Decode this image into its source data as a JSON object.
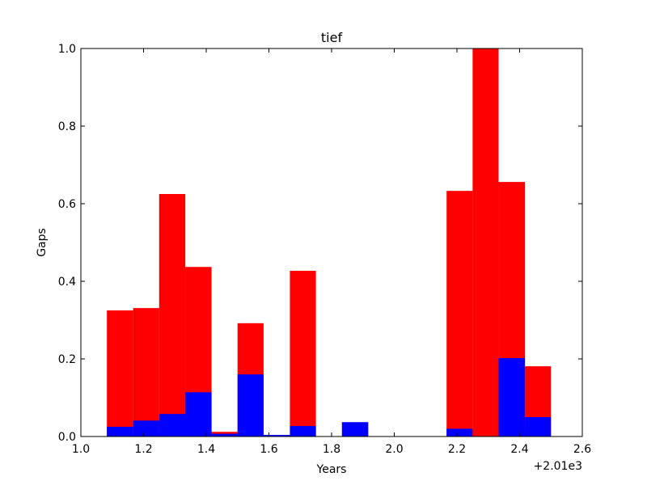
{
  "chart_data": {
    "type": "bar",
    "title": "tief",
    "xlabel": "Years",
    "ylabel": "Gaps",
    "x_offset_label": "+2.01e3",
    "xlim": [
      1.0,
      2.6
    ],
    "ylim": [
      0.0,
      1.0
    ],
    "x_ticks": [
      "1.0",
      "1.2",
      "1.4",
      "1.6",
      "1.8",
      "2.0",
      "2.2",
      "2.4",
      "2.6"
    ],
    "y_ticks": [
      "0.0",
      "0.2",
      "0.4",
      "0.6",
      "0.8",
      "1.0"
    ],
    "grid": false,
    "colors": {
      "series_1": "#ff0000",
      "series_2": "#0000ff"
    },
    "series": [
      {
        "bars": [
          {
            "x0": 1.083,
            "x1": 1.167,
            "y": 0.325
          },
          {
            "x0": 1.167,
            "x1": 1.25,
            "y": 0.331
          },
          {
            "x0": 1.25,
            "x1": 1.333,
            "y": 0.625
          },
          {
            "x0": 1.333,
            "x1": 1.417,
            "y": 0.437
          },
          {
            "x0": 1.417,
            "x1": 1.5,
            "y": 0.012
          },
          {
            "x0": 1.5,
            "x1": 1.583,
            "y": 0.292
          },
          {
            "x0": 1.667,
            "x1": 1.75,
            "y": 0.427
          },
          {
            "x0": 2.167,
            "x1": 2.25,
            "y": 0.633
          },
          {
            "x0": 2.25,
            "x1": 2.333,
            "y": 1.0
          },
          {
            "x0": 2.333,
            "x1": 2.417,
            "y": 0.656
          },
          {
            "x0": 2.417,
            "x1": 2.5,
            "y": 0.181
          }
        ]
      },
      {
        "bars": [
          {
            "x0": 1.083,
            "x1": 1.167,
            "y": 0.025
          },
          {
            "x0": 1.167,
            "x1": 1.25,
            "y": 0.041
          },
          {
            "x0": 1.25,
            "x1": 1.333,
            "y": 0.058
          },
          {
            "x0": 1.333,
            "x1": 1.417,
            "y": 0.114
          },
          {
            "x0": 1.417,
            "x1": 1.5,
            "y": 0.007
          },
          {
            "x0": 1.5,
            "x1": 1.583,
            "y": 0.16
          },
          {
            "x0": 1.583,
            "x1": 1.667,
            "y": 0.004
          },
          {
            "x0": 1.667,
            "x1": 1.75,
            "y": 0.027
          },
          {
            "x0": 1.833,
            "x1": 1.917,
            "y": 0.037
          },
          {
            "x0": 2.167,
            "x1": 2.25,
            "y": 0.02
          },
          {
            "x0": 2.333,
            "x1": 2.417,
            "y": 0.202
          },
          {
            "x0": 2.417,
            "x1": 2.5,
            "y": 0.05
          }
        ]
      }
    ]
  }
}
